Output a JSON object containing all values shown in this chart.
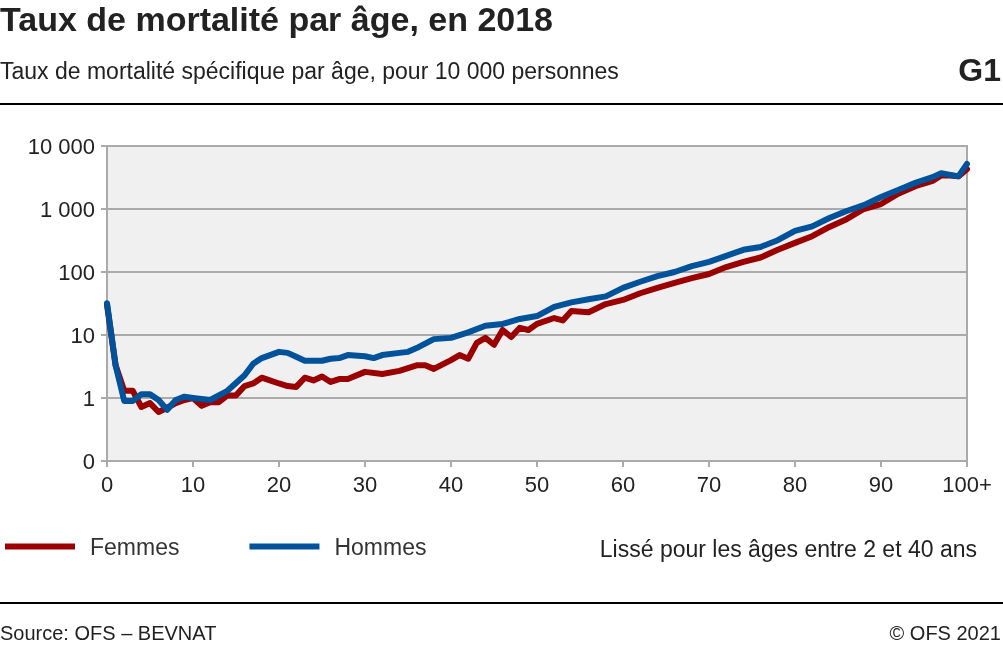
{
  "chart_data": {
    "type": "line",
    "title": "Taux de mortalité par âge, en 2018",
    "subtitle": "Taux de mortalité spécifique par âge, pour 10 000 personnes",
    "annotations": [
      "G1",
      "Lissé pour les âges entre 2 et 40 ans",
      "Source: OFS – BEVNAT",
      "© OFS 2021"
    ],
    "log": "y",
    "grid": "y",
    "legend": "bottom left",
    "marker": "none",
    "line_style": "solid",
    "xlim": [
      0,
      100
    ],
    "xticks": [
      0,
      10,
      20,
      30,
      40,
      50,
      60,
      70,
      80,
      90,
      {
        "value": 100,
        "label": "100+"
      }
    ],
    "ylim": [
      0.1,
      10000
    ],
    "yticks": [
      {
        "value": 0.1,
        "label": "0"
      },
      1,
      10,
      100,
      {
        "value": 1000,
        "label": "1 000"
      },
      {
        "value": 10000,
        "label": "10 000"
      }
    ],
    "series": [
      {
        "name": "Femmes",
        "color": "#9b0000",
        "x": [
          0,
          1,
          2,
          3,
          4,
          5,
          6,
          7,
          8,
          9,
          10,
          11,
          12,
          13,
          14,
          15,
          16,
          17,
          18,
          20,
          21,
          22,
          23,
          24,
          25,
          26,
          27,
          28,
          30,
          32,
          34,
          36,
          37,
          38,
          40,
          41,
          42,
          43,
          44,
          45,
          46,
          47,
          48,
          49,
          50,
          52,
          53,
          54,
          56,
          58,
          60,
          62,
          64,
          66,
          68,
          70,
          72,
          74,
          76,
          78,
          80,
          82,
          84,
          86,
          88,
          90,
          92,
          94,
          96,
          97,
          98,
          99,
          100
        ],
        "values": [
          30,
          3.3,
          1.3,
          1.3,
          0.72,
          0.83,
          0.6,
          0.7,
          0.83,
          0.93,
          1,
          0.75,
          0.86,
          0.86,
          1.1,
          1.1,
          1.55,
          1.7,
          2.1,
          1.7,
          1.55,
          1.5,
          2.1,
          1.9,
          2.2,
          1.8,
          2,
          2,
          2.6,
          2.4,
          2.7,
          3.3,
          3.3,
          2.9,
          4,
          4.8,
          4.2,
          7.5,
          9,
          7,
          12,
          9.3,
          13,
          12,
          15,
          18.6,
          17,
          24,
          23,
          31,
          36,
          46,
          56,
          67,
          80,
          93,
          120,
          145,
          170,
          225,
          290,
          370,
          520,
          690,
          1000,
          1200,
          1750,
          2300,
          2800,
          3400,
          3400,
          3300,
          4300
        ]
      },
      {
        "name": "Hommes",
        "color": "#00529b",
        "x": [
          0,
          1,
          2,
          3,
          4,
          5,
          6,
          7,
          8,
          9,
          10,
          12,
          14,
          16,
          17,
          18,
          20,
          21,
          22,
          23,
          25,
          26,
          27,
          28,
          30,
          31,
          32,
          34,
          35,
          36,
          38,
          40,
          42,
          44,
          46,
          48,
          50,
          52,
          54,
          56,
          58,
          60,
          62,
          64,
          66,
          68,
          70,
          72,
          74,
          76,
          78,
          80,
          82,
          84,
          86,
          88,
          90,
          92,
          94,
          96,
          97,
          99,
          100
        ],
        "values": [
          32,
          3.3,
          0.9,
          0.9,
          1.15,
          1.15,
          0.93,
          0.65,
          0.93,
          1.05,
          1,
          0.93,
          1.3,
          2.3,
          3.5,
          4.3,
          5.4,
          5.2,
          4.5,
          3.9,
          3.9,
          4.2,
          4.3,
          4.8,
          4.6,
          4.3,
          4.8,
          5.2,
          5.4,
          6.2,
          8.6,
          9,
          11,
          14,
          15,
          18,
          20,
          28,
          33,
          37,
          41,
          56,
          70,
          86,
          100,
          124,
          145,
          180,
          225,
          250,
          320,
          450,
          530,
          720,
          930,
          1150,
          1550,
          2000,
          2600,
          3200,
          3700,
          3300,
          5200
        ]
      }
    ]
  }
}
